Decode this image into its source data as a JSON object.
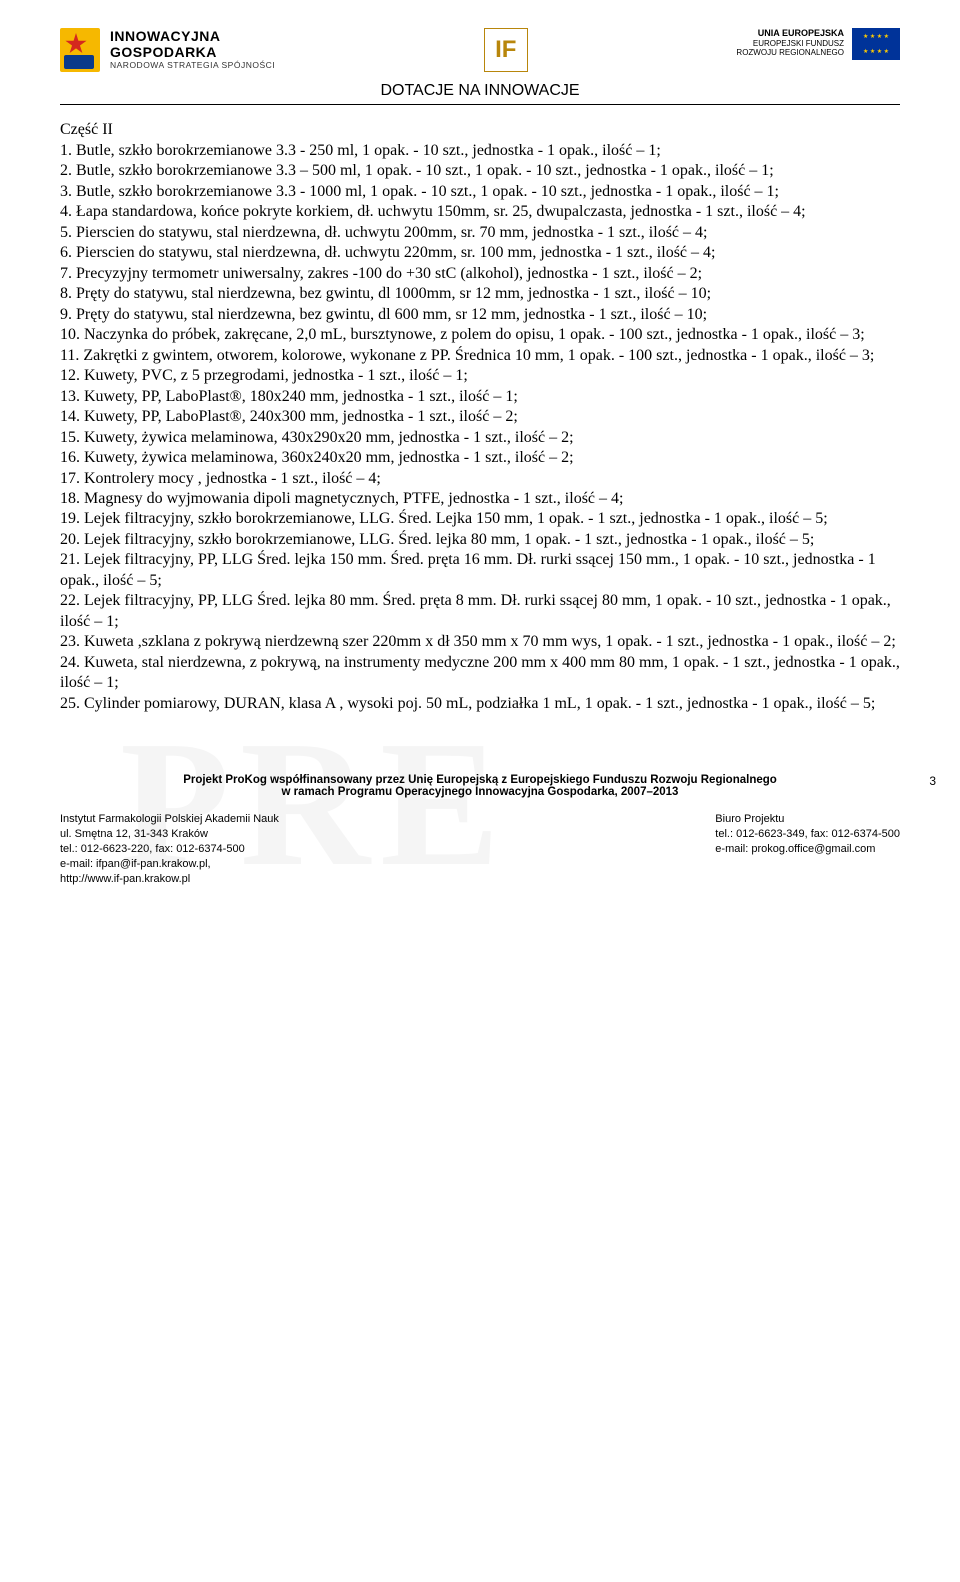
{
  "header": {
    "ig": {
      "line1": "INNOWACYJNA",
      "line2": "GOSPODARKA",
      "line3": "NARODOWA STRATEGIA SPÓJNOŚCI"
    },
    "if_label": "IF",
    "eu": {
      "line1": "UNIA EUROPEJSKA",
      "line2": "EUROPEJSKI FUNDUSZ",
      "line3": "ROZWOJU REGIONALNEGO"
    },
    "title": "DOTACJE NA INNOWACJE"
  },
  "section_title": "Część II",
  "items": [
    "1. Butle, szkło borokrzemianowe 3.3 - 250 ml, 1 opak. - 10 szt., jednostka - 1 opak., ilość – 1;",
    "2. Butle, szkło borokrzemianowe 3.3 – 500 ml, 1 opak. - 10 szt., 1 opak. - 10 szt., jednostka - 1 opak., ilość – 1;",
    "3. Butle, szkło borokrzemianowe 3.3 - 1000 ml, 1 opak. - 10 szt., 1 opak. - 10 szt., jednostka - 1 opak., ilość – 1;",
    "4. Łapa standardowa, końce pokryte korkiem, dł. uchwytu 150mm, sr. 25, dwupalczasta, jednostka - 1 szt., ilość – 4;",
    "5. Pierscien do statywu, stal nierdzewna, dł. uchwytu 200mm, sr. 70 mm, jednostka - 1 szt., ilość – 4;",
    "6. Pierscien do statywu, stal nierdzewna, dł. uchwytu 220mm, sr. 100 mm, jednostka - 1 szt., ilość – 4;",
    "7. Precyzyjny termometr uniwersalny, zakres -100 do +30 stC (alkohol), jednostka - 1 szt., ilość – 2;",
    "8. Pręty do statywu, stal nierdzewna, bez gwintu, dl 1000mm, sr 12 mm, jednostka - 1 szt., ilość – 10;",
    "9. Pręty do statywu, stal nierdzewna, bez gwintu, dl 600 mm, sr 12 mm, jednostka - 1 szt., ilość – 10;",
    "10. Naczynka do próbek, zakręcane, 2,0 mL, bursztynowe, z polem do opisu, 1 opak. - 100 szt., jednostka - 1 opak., ilość – 3;",
    "11. Zakrętki z gwintem, otworem, kolorowe, wykonane z PP. Średnica 10 mm, 1 opak. - 100 szt., jednostka - 1 opak., ilość – 3;",
    "12. Kuwety, PVC, z 5 przegrodami, jednostka - 1 szt., ilość – 1;",
    "13. Kuwety, PP, LaboPlast®, 180x240 mm, jednostka - 1 szt., ilość – 1;",
    "14. Kuwety, PP, LaboPlast®, 240x300 mm, jednostka - 1 szt., ilość – 2;",
    "15. Kuwety, żywica melaminowa, 430x290x20 mm, jednostka - 1 szt., ilość – 2;",
    "16. Kuwety, żywica melaminowa, 360x240x20 mm, jednostka - 1 szt., ilość – 2;",
    "17. Kontrolery mocy , jednostka - 1 szt., ilość – 4;",
    "18. Magnesy do wyjmowania dipoli magnetycznych, PTFE, jednostka - 1 szt., ilość – 4;",
    "19. Lejek filtracyjny, szkło borokrzemianowe, LLG. Śred. Lejka 150 mm, 1 opak. - 1 szt., jednostka - 1 opak., ilość – 5;",
    "20. Lejek filtracyjny, szkło borokrzemianowe, LLG. Śred. lejka 80 mm, 1 opak. - 1 szt., jednostka - 1 opak., ilość – 5;",
    "21. Lejek filtracyjny, PP, LLG Śred. lejka 150 mm. Śred. pręta 16 mm. Dł. rurki ssącej 150 mm., 1 opak. - 10 szt., jednostka - 1 opak., ilość – 5;",
    "22. Lejek filtracyjny, PP, LLG Śred. lejka 80 mm. Śred. pręta 8 mm. Dł. rurki ssącej 80 mm, 1 opak. - 10 szt., jednostka - 1 opak., ilość – 1;",
    "23. Kuweta ,szklana z pokrywą nierdzewną szer 220mm x  dł 350 mm  x 70 mm wys, 1 opak. - 1 szt., jednostka - 1 opak., ilość – 2;",
    "24. Kuweta, stal nierdzewna, z pokrywą, na instrumenty medyczne 200 mm x 400 mm 80 mm, 1 opak. - 1 szt., jednostka - 1 opak., ilość – 1;",
    "25. Cylinder pomiarowy, DURAN, klasa A , wysoki poj. 50 mL, podziałka 1 mL, 1 opak. - 1 szt., jednostka - 1 opak., ilość – 5;"
  ],
  "footer": {
    "bold1": "Projekt ProKog współfinansowany przez Unię Europejską z Europejskiego Funduszu Rozwoju Regionalnego",
    "bold2": "w ramach Programu Operacyjnego Innowacyjna Gospodarka, 2007–2013",
    "left": {
      "l1": "Instytut Farmakologii Polskiej Akademii Nauk",
      "l2": "ul. Smętna 12, 31-343 Kraków",
      "l3": "tel.: 012-6623-220, fax: 012-6374-500",
      "l4": "e-mail: ifpan@if-pan.krakow.pl,",
      "l5": "http://www.if-pan.krakow.pl"
    },
    "right": {
      "l1": "Biuro Projektu",
      "l2": "tel.: 012-6623-349, fax: 012-6374-500",
      "l3": "e-mail: prokog.office@gmail.com"
    }
  },
  "page_number": "3"
}
